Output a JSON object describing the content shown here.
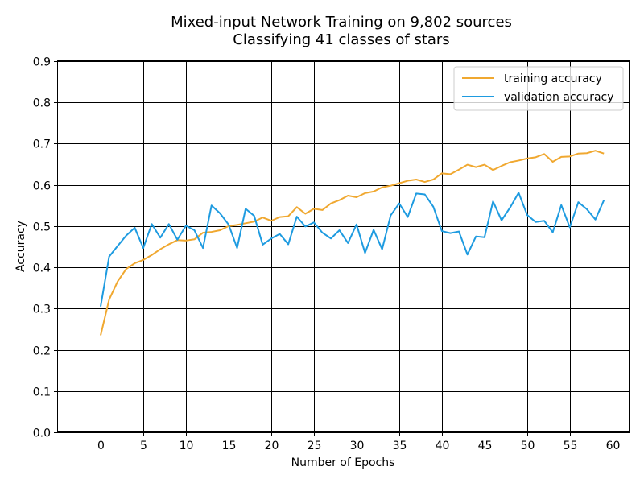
{
  "chart_data": {
    "type": "line",
    "title": "Mixed-input Network Training on 9,802 sources",
    "subtitle": "Classifying 41 classes of stars",
    "xlabel": "Number of Epochs",
    "ylabel": "Accuracy",
    "xlim": [
      -5,
      62
    ],
    "ylim": [
      0,
      0.9
    ],
    "xticks": [
      0,
      5,
      10,
      15,
      20,
      25,
      30,
      35,
      40,
      45,
      50,
      55,
      60
    ],
    "yticks": [
      0.0,
      0.1,
      0.2,
      0.3,
      0.4,
      0.5,
      0.6,
      0.7,
      0.8,
      0.9
    ],
    "ytick_labels": [
      "0.0",
      "0.1",
      "0.2",
      "0.3",
      "0.4",
      "0.5",
      "0.6",
      "0.7",
      "0.8",
      "0.9"
    ],
    "grid": true,
    "legend_position": "top-right",
    "x": [
      0,
      1,
      2,
      3,
      4,
      5,
      6,
      7,
      8,
      9,
      10,
      11,
      12,
      13,
      14,
      15,
      16,
      17,
      18,
      19,
      20,
      21,
      22,
      23,
      24,
      25,
      26,
      27,
      28,
      29,
      30,
      31,
      32,
      33,
      34,
      35,
      36,
      37,
      38,
      39,
      40,
      41,
      42,
      43,
      44,
      45,
      46,
      47,
      48,
      49,
      50,
      51,
      52,
      53,
      54,
      55,
      56,
      57,
      58,
      59
    ],
    "series": [
      {
        "name": "training accuracy",
        "color": "#f0a830",
        "values": [
          0.235,
          0.322,
          0.366,
          0.396,
          0.41,
          0.418,
          0.43,
          0.444,
          0.456,
          0.466,
          0.465,
          0.468,
          0.484,
          0.486,
          0.49,
          0.5,
          0.503,
          0.507,
          0.511,
          0.521,
          0.513,
          0.522,
          0.524,
          0.546,
          0.53,
          0.542,
          0.539,
          0.555,
          0.563,
          0.574,
          0.57,
          0.58,
          0.584,
          0.594,
          0.598,
          0.604,
          0.61,
          0.613,
          0.607,
          0.613,
          0.628,
          0.626,
          0.637,
          0.649,
          0.643,
          0.649,
          0.636,
          0.646,
          0.655,
          0.659,
          0.664,
          0.667,
          0.675,
          0.656,
          0.668,
          0.669,
          0.676,
          0.677,
          0.683,
          0.676
        ]
      },
      {
        "name": "validation accuracy",
        "color": "#1e9be0",
        "values": [
          0.305,
          0.426,
          0.452,
          0.477,
          0.496,
          0.447,
          0.505,
          0.472,
          0.505,
          0.467,
          0.501,
          0.49,
          0.447,
          0.55,
          0.531,
          0.504,
          0.447,
          0.542,
          0.525,
          0.455,
          0.47,
          0.481,
          0.456,
          0.523,
          0.499,
          0.509,
          0.484,
          0.47,
          0.49,
          0.459,
          0.504,
          0.435,
          0.491,
          0.444,
          0.526,
          0.555,
          0.522,
          0.579,
          0.577,
          0.547,
          0.488,
          0.483,
          0.487,
          0.431,
          0.475,
          0.473,
          0.56,
          0.514,
          0.545,
          0.581,
          0.527,
          0.51,
          0.513,
          0.485,
          0.551,
          0.497,
          0.558,
          0.541,
          0.516,
          0.563
        ]
      }
    ]
  }
}
